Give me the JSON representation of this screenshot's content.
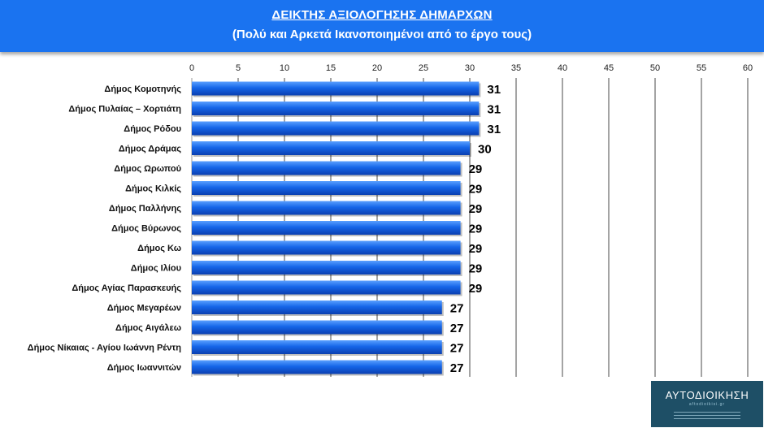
{
  "header": {
    "title": "ΔΕΙΚΤΗΣ ΑΞΙΟΛΟΓΗΣΗΣ ΔΗΜΑΡΧΩΝ",
    "subtitle": "(Πολύ και Αρκετά Ικανοποιημένοι από το έργο τους)"
  },
  "logo": {
    "brand": "ΑΥΤΟΔΙΟΙΚΗΣΗ",
    "site": "aftodioikisi.gr"
  },
  "colors": {
    "header_bg": "#1a73f0",
    "bar": "#1565e8",
    "bar_light": "#5aa0ff",
    "bar_dark": "#0b3fb0",
    "logo_bg": "#1e4f66"
  },
  "chart_data": {
    "type": "bar",
    "orientation": "horizontal",
    "categories": [
      "Δήμος Κομοτηνής",
      "Δήμος Πυλαίας – Χορτιάτη",
      "Δήμος Ρόδου",
      "Δήμος Δράμας",
      "Δήμος Ωρωπού",
      "Δήμος Κιλκίς",
      "Δήμος Παλλήνης",
      "Δήμος Βύρωνος",
      "Δήμος Κω",
      "Δήμος Ιλίου",
      "Δήμος Αγίας Παρασκευής",
      "Δήμος Μεγαρέων",
      "Δήμος Αιγάλεω",
      "Δήμος Νίκαιας - Αγίου Ιωάννη Ρέντη",
      "Δήμος Ιωαννιτών"
    ],
    "values": [
      31,
      31,
      31,
      30,
      29,
      29,
      29,
      29,
      29,
      29,
      29,
      27,
      27,
      27,
      27
    ],
    "xlim": [
      0,
      60
    ],
    "xticks": [
      0,
      5,
      10,
      15,
      20,
      25,
      30,
      35,
      40,
      45,
      50,
      55,
      60
    ],
    "axis_position": "top",
    "grid": true,
    "data_labels": true
  }
}
